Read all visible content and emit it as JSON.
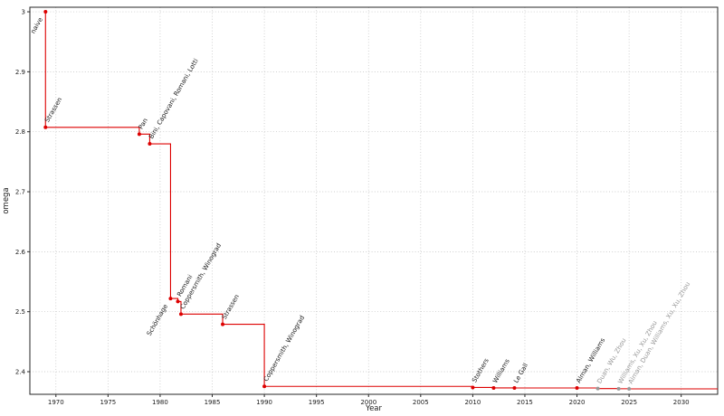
{
  "chart_data": {
    "type": "line",
    "subtype": "step-post",
    "title": "",
    "xlabel": "Year",
    "ylabel": "omega",
    "xlim": [
      1967.5,
      2033.5
    ],
    "ylim": [
      2.3623,
      3.0076
    ],
    "xticks": [
      1970,
      1975,
      1980,
      1985,
      1990,
      1995,
      2000,
      2005,
      2010,
      2015,
      2020,
      2025,
      2030
    ],
    "yticks": [
      2.4,
      2.5,
      2.6,
      2.7,
      2.8,
      2.9,
      3
    ],
    "grid": true,
    "grid_color": "#bfbfbf",
    "axis_color": "#262626",
    "text_color": "#1a1a1a",
    "line_color": "#dd0000",
    "muted_color": "#999999",
    "points": [
      {
        "year": 1969,
        "omega": 3.0,
        "label": "naive",
        "label_position": "below"
      },
      {
        "year": 1969,
        "omega": 2.8074,
        "label": "Strassen"
      },
      {
        "year": 1978,
        "omega": 2.796,
        "label": "Pan"
      },
      {
        "year": 1979,
        "omega": 2.7799,
        "label": "Bini, Capovani, Romani, Lotti"
      },
      {
        "year": 1981,
        "omega": 2.522,
        "label": "Schönhage",
        "label_position": "below"
      },
      {
        "year": 1981.7,
        "omega": 2.517,
        "label": "Romani"
      },
      {
        "year": 1982,
        "omega": 2.496,
        "label": "Coppersmith, Winograd"
      },
      {
        "year": 1986,
        "omega": 2.479,
        "label": "Strassen"
      },
      {
        "year": 1990,
        "omega": 2.3755,
        "label": "Coppersmith, Winograd"
      },
      {
        "year": 2010,
        "omega": 2.3737,
        "label": "Stothers"
      },
      {
        "year": 2012,
        "omega": 2.3729,
        "label": "Williams"
      },
      {
        "year": 2014,
        "omega": 2.3728639,
        "label": "Le Gall"
      },
      {
        "year": 2020,
        "omega": 2.3728596,
        "label": "Alman, Williams"
      },
      {
        "year": 2022,
        "omega": 2.371866,
        "label": "Duan, Wu, Zhou",
        "label_color": "#999999",
        "point_color": "#999999"
      },
      {
        "year": 2024,
        "omega": 2.371552,
        "label": "Williams, Xu, Xu, Zhou",
        "label_color": "#999999",
        "point_color": "#999999"
      },
      {
        "year": 2025,
        "omega": 2.371339,
        "label": "Alman, Duan, Williams, Xu, Xu, Zhou",
        "label_color": "#999999",
        "point_color": "#999999"
      }
    ]
  }
}
